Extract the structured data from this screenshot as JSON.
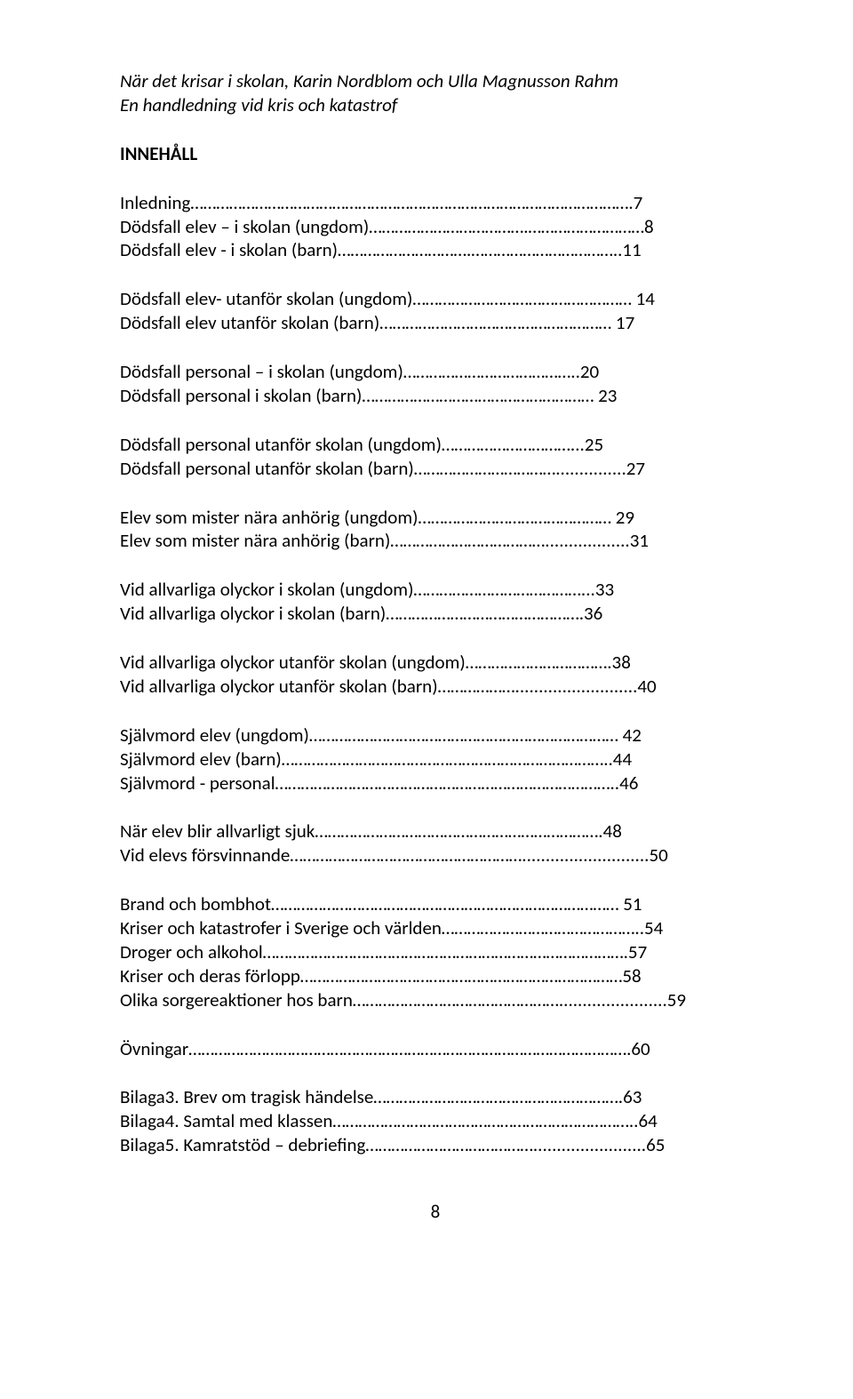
{
  "title_line1": "När det krisar i skolan, Karin Nordblom och Ulla Magnusson Rahm",
  "title_line2": "En handledning vid kris och katastrof",
  "heading": "INNEHÅLL",
  "toc": {
    "l1": "Inledning………………………………………………………………………………………….7",
    "l2": "Dödsfall elev – i skolan (ungdom)……………………………….………………………8",
    "l3": "Dödsfall elev - i skolan (barn)………………………….……………………………..11",
    "l4": "Dödsfall elev- utanför skolan (ungdom)…………………………………………… 14",
    "l5": "Dödsfall elev utanför skolan (barn)……………………………………………… 17",
    "l6": "Dödsfall personal – i skolan (ungdom)…………………………………..20",
    "l7": "Dödsfall personal i skolan (barn)……………………………………………… 23",
    "l8": "Dödsfall personal utanför skolan (ungdom)…………………………...25",
    "l9": "Dödsfall personal utanför skolan (barn)……………………………...............27",
    "l10": "Elev som mister nära anhörig (ungdom)……………………………………… 29",
    "l11": "Elev som mister nära anhörig (barn)………………………………..................31",
    "l12": "Vid allvarliga olyckor i skolan (ungdom)…………………………………...33",
    "l13": "Vid allvarliga olyckor i skolan (barn)……………………………………….36",
    "l14": "Vid allvarliga olyckor utanför skolan (ungdom)…………………………….38",
    "l15": "Vid allvarliga olyckor utanför skolan (barn)………………..........................40",
    "l16": "Självmord elev (ungdom)……………………………………………………………… 42",
    "l17": "Självmord elev (barn)…………………………………………………………………..44",
    "l18": "Självmord  - personal……………………………………………………………………..46",
    "l19": "När elev blir allvarligt sjuk………………………………………………………….48",
    "l20": "Vid elevs försvinnande………………………………………………...........................50",
    "l21": "Brand och bombhot……………………………………………………………………… 51",
    "l22": "Kriser och katastrofer i Sverige och världen………………………………………..54",
    "l23": "Droger och alkohol………………………………………………………………………….57",
    "l24": "Kriser och deras förlopp…………………………………………………………………58",
    "l25": "Olika sorgereaktioner hos barn………………………………………….......................59",
    "l26": "Övningar………………………………………………………………………………………….60",
    "l27": "Bilaga3. Brev om tragisk händelse………………………………………………….63",
    "l28": "Bilaga4. Samtal med klassen……………………………………………………………..64",
    "l29": "Bilaga5. Kamratstöd – debriefing…………………………………........................65"
  },
  "pagenum": "8"
}
